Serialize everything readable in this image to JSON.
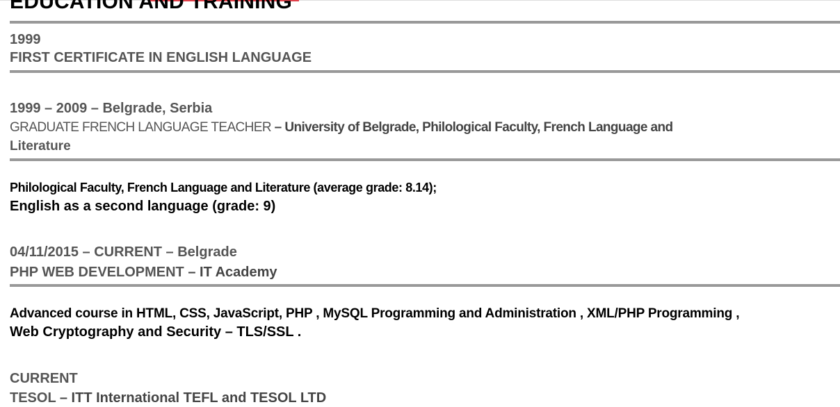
{
  "section_title": "EDUCATION AND TRAINING",
  "accent_color": "#e0404a",
  "entries": [
    {
      "date": "1999",
      "title": "FIRST CERTIFICATE IN ENGLISH LANGUAGE"
    },
    {
      "date": "1999 – 2009 – Belgrade, Serbia",
      "title": "GRADUATE FRENCH LANGUAGE TEACHER",
      "org": " – University of Belgrade, Philological Faculty, French Language and",
      "org_cont": "Literature",
      "desc1": "Philological Faculty, French Language and Literature (average grade: 8.14);",
      "desc2": "English as a second language (grade: 9)"
    },
    {
      "date": "04/11/2015 – CURRENT – Belgrade",
      "title": "PHP WEB DEVELOPMENT",
      "org": " – IT Academy",
      "desc1": "Advanced course in HTML, CSS, JavaScript, PHP , MySQL Programming and Administration , XML/PHP Programming ,",
      "desc2": "Web Cryptography and Security – TLS/SSL ."
    },
    {
      "date": "CURRENT",
      "title": "TESOL",
      "org": " – ITT International TEFL and TESOL LTD"
    }
  ]
}
